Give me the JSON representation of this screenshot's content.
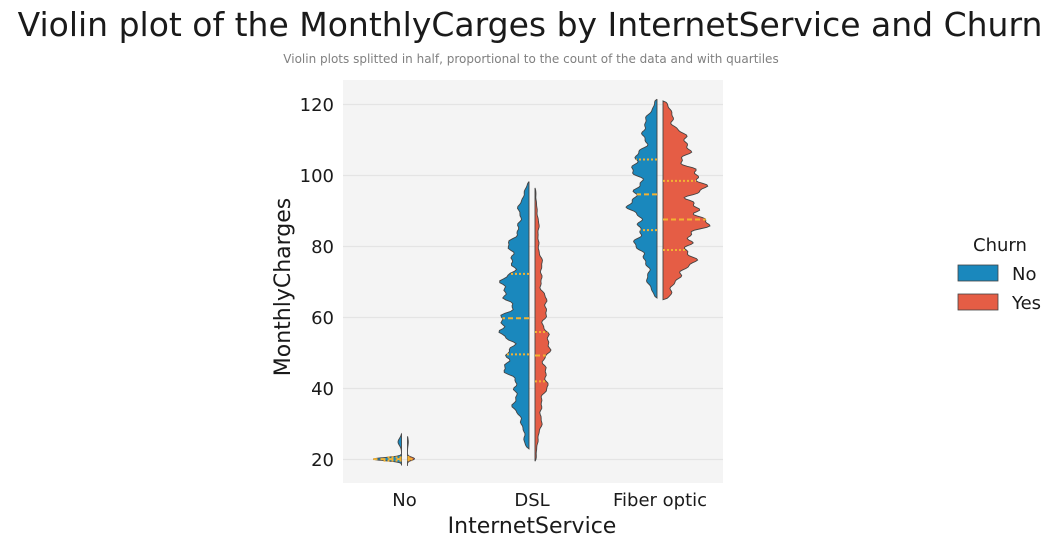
{
  "chart_data": {
    "type": "violin",
    "title": "Violin plot of the MonthlyCarges by InternetService and Churn",
    "subtitle": "Violin plots splitted in half, proportional to the count of the data and with quartiles",
    "xlabel": "InternetService",
    "ylabel": "MonthlyCharges",
    "ylim": [
      13,
      127
    ],
    "yticks": [
      20,
      40,
      60,
      80,
      100,
      120
    ],
    "categories": [
      "No",
      "DSL",
      "Fiber optic"
    ],
    "legend": {
      "title": "Churn",
      "position": "right",
      "entries": [
        "No",
        "Yes"
      ]
    },
    "colors": {
      "No": "#1a88bd",
      "Yes": "#e55d45",
      "quartile": "#f2b233",
      "panel": "#f4f4f4",
      "grid": "#e4e4e4",
      "outline": "#444444"
    },
    "grid": true,
    "series": [
      {
        "category": "No",
        "churn": "No",
        "min": 18.3,
        "max": 27.2,
        "q1": 19.7,
        "median": 20.1,
        "q3": 20.6,
        "max_half_width": 28
      },
      {
        "category": "No",
        "churn": "Yes",
        "min": 18.2,
        "max": 26.5,
        "q1": 19.8,
        "median": 20.2,
        "q3": 20.7,
        "max_half_width": 7
      },
      {
        "category": "DSL",
        "churn": "No",
        "min": 23.0,
        "max": 98.3,
        "q1": 49.6,
        "median": 59.8,
        "q3": 72.3,
        "max_half_width": 30
      },
      {
        "category": "DSL",
        "churn": "Yes",
        "min": 19.5,
        "max": 96.5,
        "q1": 42.0,
        "median": 49.3,
        "q3": 55.9,
        "max_half_width": 16
      },
      {
        "category": "Fiber optic",
        "churn": "No",
        "min": 65.5,
        "max": 121.5,
        "q1": 84.6,
        "median": 94.7,
        "q3": 104.5,
        "max_half_width": 31
      },
      {
        "category": "Fiber optic",
        "churn": "Yes",
        "min": 65.0,
        "max": 121.0,
        "q1": 79.0,
        "median": 87.6,
        "q3": 98.5,
        "max_half_width": 47
      }
    ]
  }
}
